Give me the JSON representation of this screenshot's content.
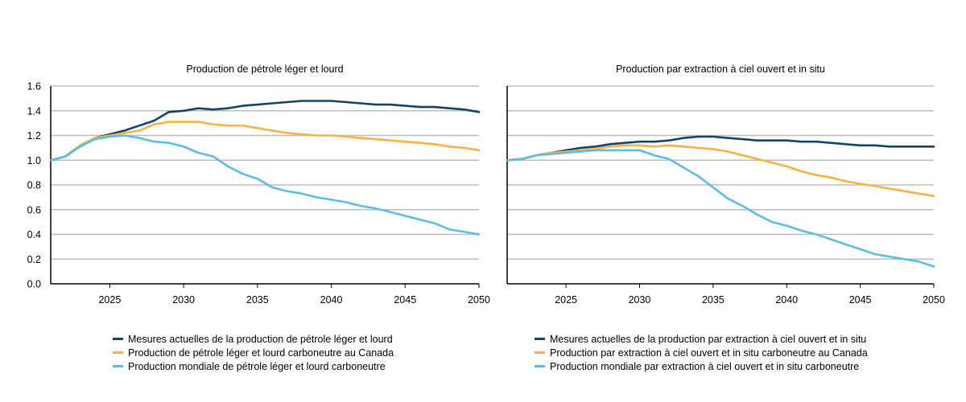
{
  "chart_data": [
    {
      "type": "line",
      "title": "Production de pétrole léger et lourd",
      "xlabel": "",
      "ylabel": "",
      "xlim": [
        2021,
        2050
      ],
      "ylim": [
        0,
        1.6
      ],
      "x_ticks": [
        2025,
        2030,
        2035,
        2040,
        2045,
        2050
      ],
      "y_ticks": [
        0.0,
        0.2,
        0.4,
        0.6,
        0.8,
        1.0,
        1.2,
        1.4,
        1.6
      ],
      "grid": "horizontal",
      "legend_position": "bottom",
      "series": [
        {
          "name": "Mesures actuelles de la production de pétrole léger et lourd",
          "color": "#12446b",
          "x": [
            2021,
            2022,
            2023,
            2024,
            2025,
            2026,
            2027,
            2028,
            2029,
            2030,
            2031,
            2032,
            2033,
            2034,
            2035,
            2036,
            2037,
            2038,
            2039,
            2040,
            2041,
            2042,
            2043,
            2044,
            2045,
            2046,
            2047,
            2048,
            2049,
            2050
          ],
          "y": [
            1.0,
            1.03,
            1.12,
            1.18,
            1.21,
            1.24,
            1.28,
            1.32,
            1.39,
            1.4,
            1.42,
            1.41,
            1.42,
            1.44,
            1.45,
            1.46,
            1.47,
            1.48,
            1.48,
            1.48,
            1.47,
            1.46,
            1.45,
            1.45,
            1.44,
            1.43,
            1.43,
            1.42,
            1.41,
            1.39
          ]
        },
        {
          "name": "Production de pétrole léger et lourd carboneutre au Canada",
          "color": "#fbb042",
          "x": [
            2021,
            2022,
            2023,
            2024,
            2025,
            2026,
            2027,
            2028,
            2029,
            2030,
            2031,
            2032,
            2033,
            2034,
            2035,
            2036,
            2037,
            2038,
            2039,
            2040,
            2041,
            2042,
            2043,
            2044,
            2045,
            2046,
            2047,
            2048,
            2049,
            2050
          ],
          "y": [
            1.0,
            1.03,
            1.12,
            1.18,
            1.2,
            1.22,
            1.24,
            1.29,
            1.31,
            1.31,
            1.31,
            1.29,
            1.28,
            1.28,
            1.26,
            1.24,
            1.22,
            1.21,
            1.2,
            1.2,
            1.19,
            1.18,
            1.17,
            1.16,
            1.15,
            1.14,
            1.13,
            1.11,
            1.1,
            1.08
          ]
        },
        {
          "name": "Production mondiale de pétrole léger et lourd carboneutre",
          "color": "#5bbde4",
          "x": [
            2021,
            2022,
            2023,
            2024,
            2025,
            2026,
            2027,
            2028,
            2029,
            2030,
            2031,
            2032,
            2033,
            2034,
            2035,
            2036,
            2037,
            2038,
            2039,
            2040,
            2041,
            2042,
            2043,
            2044,
            2045,
            2046,
            2047,
            2048,
            2049,
            2050
          ],
          "y": [
            1.0,
            1.03,
            1.11,
            1.17,
            1.19,
            1.2,
            1.18,
            1.15,
            1.14,
            1.11,
            1.06,
            1.03,
            0.95,
            0.89,
            0.85,
            0.78,
            0.75,
            0.73,
            0.7,
            0.68,
            0.66,
            0.63,
            0.61,
            0.58,
            0.55,
            0.52,
            0.49,
            0.44,
            0.42,
            0.4
          ]
        }
      ]
    },
    {
      "type": "line",
      "title": "Production par extraction à ciel ouvert et in situ",
      "xlabel": "",
      "ylabel": "",
      "xlim": [
        2021,
        2050
      ],
      "ylim": [
        0,
        1.6
      ],
      "x_ticks": [
        2025,
        2030,
        2035,
        2040,
        2045,
        2050
      ],
      "y_ticks": [
        0.0,
        0.2,
        0.4,
        0.6,
        0.8,
        1.0,
        1.2,
        1.4,
        1.6
      ],
      "grid": "horizontal",
      "legend_position": "bottom",
      "series": [
        {
          "name": "Mesures actuelles de la production par extraction à ciel ouvert et in situ",
          "color": "#12446b",
          "x": [
            2021,
            2022,
            2023,
            2024,
            2025,
            2026,
            2027,
            2028,
            2029,
            2030,
            2031,
            2032,
            2033,
            2034,
            2035,
            2036,
            2037,
            2038,
            2039,
            2040,
            2041,
            2042,
            2043,
            2044,
            2045,
            2046,
            2047,
            2048,
            2049,
            2050
          ],
          "y": [
            1.0,
            1.01,
            1.04,
            1.06,
            1.08,
            1.1,
            1.11,
            1.13,
            1.14,
            1.15,
            1.15,
            1.16,
            1.18,
            1.19,
            1.19,
            1.18,
            1.17,
            1.16,
            1.16,
            1.16,
            1.15,
            1.15,
            1.14,
            1.13,
            1.12,
            1.12,
            1.11,
            1.11,
            1.11,
            1.11
          ]
        },
        {
          "name": "Production par extraction à ciel ouvert et in situ carboneutre au Canada",
          "color": "#fbb042",
          "x": [
            2021,
            2022,
            2023,
            2024,
            2025,
            2026,
            2027,
            2028,
            2029,
            2030,
            2031,
            2032,
            2033,
            2034,
            2035,
            2036,
            2037,
            2038,
            2039,
            2040,
            2041,
            2042,
            2043,
            2044,
            2045,
            2046,
            2047,
            2048,
            2049,
            2050
          ],
          "y": [
            1.0,
            1.01,
            1.04,
            1.06,
            1.07,
            1.08,
            1.09,
            1.11,
            1.12,
            1.12,
            1.11,
            1.12,
            1.11,
            1.1,
            1.09,
            1.07,
            1.04,
            1.01,
            0.98,
            0.95,
            0.91,
            0.88,
            0.86,
            0.83,
            0.81,
            0.79,
            0.77,
            0.75,
            0.73,
            0.71
          ]
        },
        {
          "name": "Production mondiale par extraction à ciel ouvert et in situ carboneutre",
          "color": "#5bbde4",
          "x": [
            2021,
            2022,
            2023,
            2024,
            2025,
            2026,
            2027,
            2028,
            2029,
            2030,
            2031,
            2032,
            2033,
            2034,
            2035,
            2036,
            2037,
            2038,
            2039,
            2040,
            2041,
            2042,
            2043,
            2044,
            2045,
            2046,
            2047,
            2048,
            2049,
            2050
          ],
          "y": [
            1.0,
            1.01,
            1.04,
            1.05,
            1.06,
            1.07,
            1.08,
            1.08,
            1.08,
            1.08,
            1.04,
            1.01,
            0.94,
            0.87,
            0.78,
            0.69,
            0.63,
            0.56,
            0.5,
            0.47,
            0.43,
            0.4,
            0.36,
            0.32,
            0.28,
            0.24,
            0.22,
            0.2,
            0.18,
            0.14
          ]
        }
      ]
    }
  ]
}
